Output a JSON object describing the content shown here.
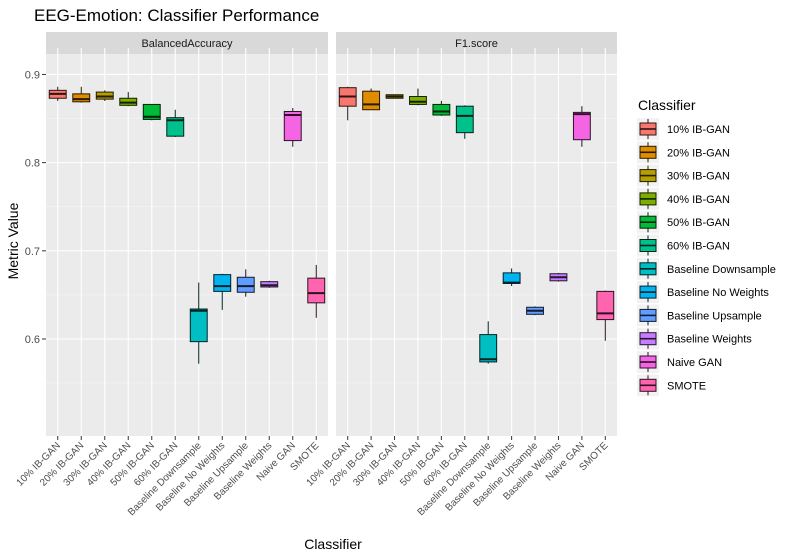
{
  "chart_data": {
    "type": "boxplot",
    "title": "EEG-Emotion: Classifier Performance",
    "xlabel": "Classifier",
    "ylabel": "Metric Value",
    "ylim": [
      0.49,
      0.93
    ],
    "yticks": [
      0.6,
      0.7,
      0.8,
      0.9
    ],
    "ytick_labels": [
      "0.6",
      "0.7",
      "0.8",
      "0.9"
    ],
    "legend": {
      "title": "Classifier",
      "position": "right"
    },
    "categories": [
      "10% IB-GAN",
      "20% IB-GAN",
      "30% IB-GAN",
      "40% IB-GAN",
      "50% IB-GAN",
      "60% IB-GAN",
      "Baseline Downsample",
      "Baseline No Weights",
      "Baseline Upsample",
      "Baseline Weights",
      "Naive GAN",
      "SMOTE"
    ],
    "colors": [
      "#F8766D",
      "#DE8C00",
      "#B79F00",
      "#7CAE00",
      "#00BA38",
      "#00C08B",
      "#00BFC4",
      "#00B4F0",
      "#619CFF",
      "#C77CFF",
      "#F564E3",
      "#FF64B0"
    ],
    "facets": [
      {
        "name": "BalancedAccuracy",
        "boxes": [
          {
            "min": 0.87,
            "q1": 0.873,
            "median": 0.878,
            "q3": 0.882,
            "max": 0.886
          },
          {
            "min": 0.868,
            "q1": 0.869,
            "median": 0.872,
            "q3": 0.878,
            "max": 0.886
          },
          {
            "min": 0.87,
            "q1": 0.872,
            "median": 0.875,
            "q3": 0.88,
            "max": 0.882
          },
          {
            "min": 0.864,
            "q1": 0.865,
            "median": 0.868,
            "q3": 0.873,
            "max": 0.88
          },
          {
            "min": 0.848,
            "q1": 0.849,
            "median": 0.852,
            "q3": 0.866,
            "max": 0.866
          },
          {
            "min": 0.829,
            "q1": 0.83,
            "median": 0.848,
            "q3": 0.851,
            "max": 0.86
          },
          {
            "min": 0.572,
            "q1": 0.597,
            "median": 0.632,
            "q3": 0.634,
            "max": 0.664
          },
          {
            "min": 0.633,
            "q1": 0.654,
            "median": 0.66,
            "q3": 0.673,
            "max": 0.674
          },
          {
            "min": 0.648,
            "q1": 0.653,
            "median": 0.66,
            "q3": 0.67,
            "max": 0.679
          },
          {
            "min": 0.658,
            "q1": 0.659,
            "median": 0.661,
            "q3": 0.665,
            "max": 0.666
          },
          {
            "min": 0.818,
            "q1": 0.825,
            "median": 0.854,
            "q3": 0.858,
            "max": 0.862
          },
          {
            "min": 0.624,
            "q1": 0.641,
            "median": 0.652,
            "q3": 0.669,
            "max": 0.684
          }
        ]
      },
      {
        "name": "F1.score",
        "boxes": [
          {
            "min": 0.848,
            "q1": 0.864,
            "median": 0.875,
            "q3": 0.885,
            "max": 0.886
          },
          {
            "min": 0.86,
            "q1": 0.86,
            "median": 0.866,
            "q3": 0.881,
            "max": 0.884
          },
          {
            "min": 0.873,
            "q1": 0.873,
            "median": 0.875,
            "q3": 0.877,
            "max": 0.877
          },
          {
            "min": 0.865,
            "q1": 0.866,
            "median": 0.869,
            "q3": 0.875,
            "max": 0.884
          },
          {
            "min": 0.853,
            "q1": 0.854,
            "median": 0.858,
            "q3": 0.866,
            "max": 0.87
          },
          {
            "min": 0.827,
            "q1": 0.834,
            "median": 0.853,
            "q3": 0.864,
            "max": 0.865
          },
          {
            "min": 0.572,
            "q1": 0.574,
            "median": 0.577,
            "q3": 0.605,
            "max": 0.62
          },
          {
            "min": 0.66,
            "q1": 0.663,
            "median": 0.664,
            "q3": 0.675,
            "max": 0.68
          },
          {
            "min": 0.627,
            "q1": 0.628,
            "median": 0.632,
            "q3": 0.636,
            "max": 0.637
          },
          {
            "min": 0.665,
            "q1": 0.666,
            "median": 0.67,
            "q3": 0.674,
            "max": 0.675
          },
          {
            "min": 0.818,
            "q1": 0.826,
            "median": 0.855,
            "q3": 0.857,
            "max": 0.864
          },
          {
            "min": 0.598,
            "q1": 0.622,
            "median": 0.629,
            "q3": 0.654,
            "max": 0.655
          }
        ]
      }
    ]
  }
}
